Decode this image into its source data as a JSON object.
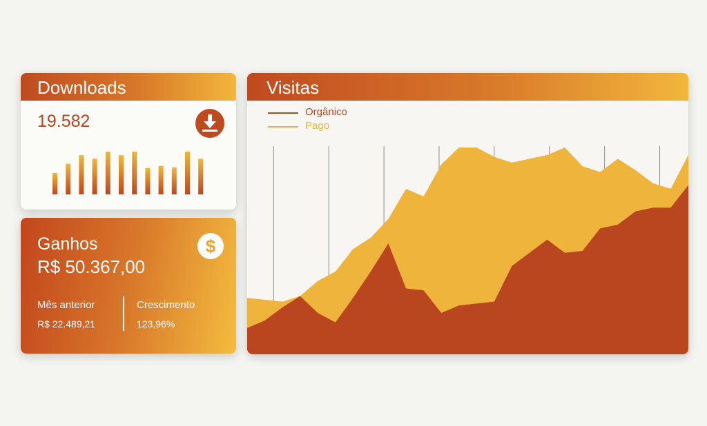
{
  "downloads": {
    "title": "Downloads",
    "value": "19.582",
    "icon": "download-icon",
    "mini_chart_values": [
      30,
      43,
      55,
      50,
      60,
      55,
      60,
      37,
      40,
      38,
      60,
      50
    ]
  },
  "ganhos": {
    "title": "Ganhos",
    "value": "R$ 50.367,00",
    "icon": "dollar-icon",
    "previous_label": "Mês anterior",
    "previous_value": "R$ 22.489,21",
    "growth_label": "Crescimento",
    "growth_value": "123,96%"
  },
  "visitas": {
    "title": "Visitas",
    "legend": [
      {
        "name": "Orgânico",
        "color": "#b9461e"
      },
      {
        "name": "Pago",
        "color": "#efb43b"
      }
    ]
  },
  "colors": {
    "accent_dark": "#b9461e",
    "accent_light": "#f2b73b",
    "background": "#f4f4f0"
  },
  "chart_data": {
    "type": "area",
    "x": [
      0,
      4,
      8,
      12,
      16,
      20,
      24,
      28,
      32,
      36,
      40,
      44,
      48,
      52,
      56,
      60,
      64,
      68,
      72,
      76,
      80,
      84,
      88,
      92,
      96,
      100
    ],
    "series": [
      {
        "name": "Orgânico",
        "values": [
          14,
          18,
          25,
          31,
          22,
          17,
          30,
          44,
          59,
          35,
          34,
          22,
          26,
          27,
          28,
          47,
          54,
          61,
          54,
          55,
          67,
          69,
          76,
          78,
          78,
          90
        ]
      },
      {
        "name": "Pago",
        "values": [
          30,
          29,
          28,
          31,
          39,
          44,
          56,
          62,
          72,
          88,
          84,
          101,
          110,
          110,
          105,
          102,
          104,
          106,
          110,
          100,
          97,
          104,
          98,
          91,
          88,
          106
        ]
      }
    ]
  }
}
